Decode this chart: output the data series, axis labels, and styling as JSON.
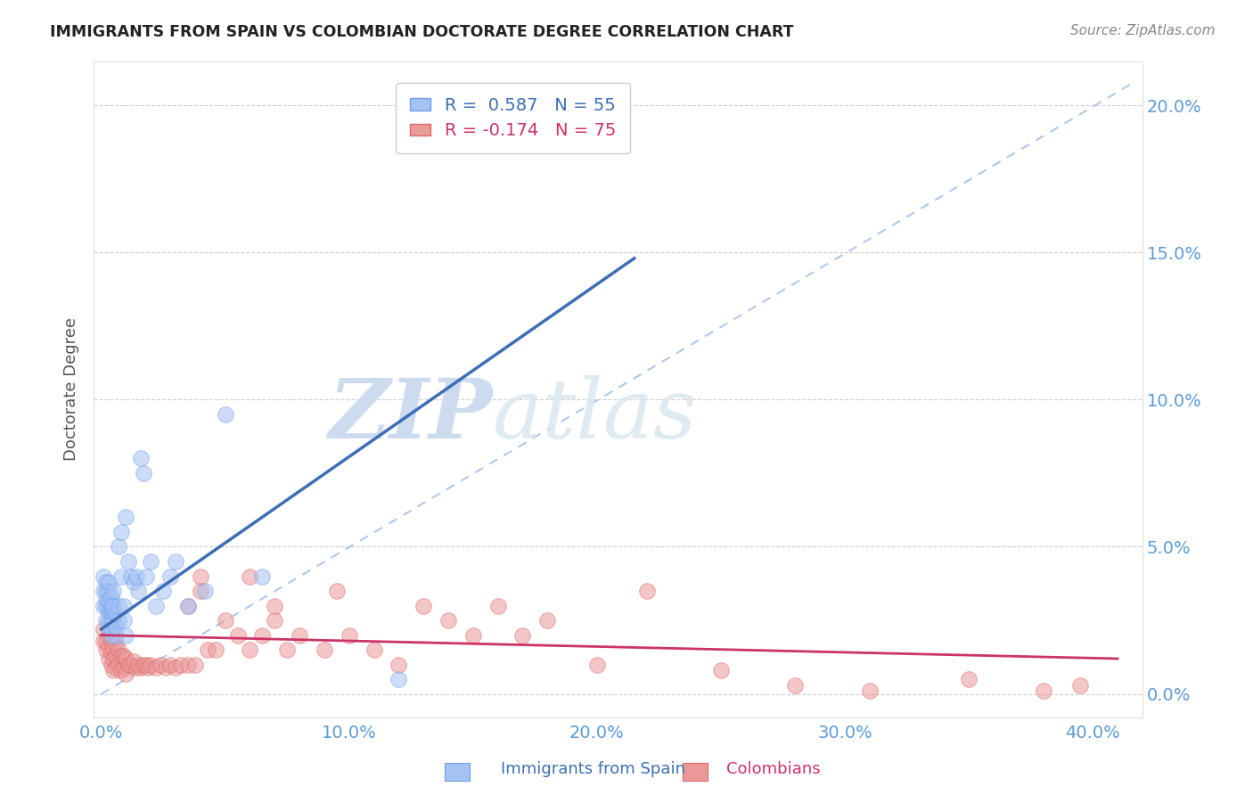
{
  "title": "IMMIGRANTS FROM SPAIN VS COLOMBIAN DOCTORATE DEGREE CORRELATION CHART",
  "source": "Source: ZipAtlas.com",
  "ylabel": "Doctorate Degree",
  "blue_r": 0.587,
  "blue_n": 55,
  "pink_r": -0.174,
  "pink_n": 75,
  "blue_color": "#a4c2f4",
  "pink_color": "#ea9999",
  "blue_edge_color": "#6d9eeb",
  "pink_edge_color": "#e06666",
  "blue_line_color": "#3d6eb5",
  "pink_line_color": "#cc3366",
  "dashed_line_color": "#b0c8e8",
  "watermark_color": "#dce8f8",
  "tick_color": "#5b9bd5",
  "ytick_values": [
    0.0,
    0.05,
    0.1,
    0.15,
    0.2
  ],
  "xtick_values": [
    0.0,
    0.1,
    0.2,
    0.3,
    0.4
  ],
  "xlim": [
    -0.003,
    0.42
  ],
  "ylim": [
    -0.008,
    0.215
  ],
  "blue_line_x": [
    0.0,
    0.215
  ],
  "blue_line_y": [
    0.022,
    0.148
  ],
  "pink_line_x": [
    0.0,
    0.41
  ],
  "pink_line_y": [
    0.02,
    0.012
  ],
  "dash_line_x": [
    0.0,
    0.415
  ],
  "dash_line_y": [
    0.0,
    0.207
  ],
  "blue_scatter_x": [
    0.001,
    0.001,
    0.001,
    0.002,
    0.002,
    0.002,
    0.002,
    0.002,
    0.003,
    0.003,
    0.003,
    0.003,
    0.003,
    0.003,
    0.003,
    0.004,
    0.004,
    0.004,
    0.004,
    0.004,
    0.004,
    0.005,
    0.005,
    0.005,
    0.005,
    0.006,
    0.006,
    0.006,
    0.007,
    0.007,
    0.007,
    0.008,
    0.008,
    0.009,
    0.009,
    0.01,
    0.01,
    0.011,
    0.012,
    0.013,
    0.014,
    0.015,
    0.016,
    0.017,
    0.018,
    0.02,
    0.022,
    0.025,
    0.028,
    0.03,
    0.035,
    0.042,
    0.05,
    0.065,
    0.12
  ],
  "blue_scatter_y": [
    0.03,
    0.035,
    0.04,
    0.025,
    0.03,
    0.032,
    0.035,
    0.038,
    0.022,
    0.025,
    0.028,
    0.03,
    0.032,
    0.035,
    0.038,
    0.02,
    0.022,
    0.025,
    0.028,
    0.03,
    0.033,
    0.025,
    0.028,
    0.03,
    0.035,
    0.02,
    0.023,
    0.027,
    0.025,
    0.03,
    0.05,
    0.04,
    0.055,
    0.025,
    0.03,
    0.02,
    0.06,
    0.045,
    0.04,
    0.038,
    0.04,
    0.035,
    0.08,
    0.075,
    0.04,
    0.045,
    0.03,
    0.035,
    0.04,
    0.045,
    0.03,
    0.035,
    0.095,
    0.04,
    0.005
  ],
  "pink_scatter_x": [
    0.001,
    0.001,
    0.002,
    0.002,
    0.003,
    0.003,
    0.003,
    0.004,
    0.004,
    0.004,
    0.005,
    0.005,
    0.005,
    0.006,
    0.006,
    0.006,
    0.007,
    0.007,
    0.008,
    0.008,
    0.009,
    0.009,
    0.01,
    0.01,
    0.011,
    0.012,
    0.013,
    0.014,
    0.015,
    0.016,
    0.017,
    0.018,
    0.019,
    0.02,
    0.022,
    0.024,
    0.026,
    0.028,
    0.03,
    0.032,
    0.035,
    0.038,
    0.04,
    0.043,
    0.046,
    0.05,
    0.055,
    0.06,
    0.065,
    0.07,
    0.075,
    0.08,
    0.09,
    0.1,
    0.11,
    0.12,
    0.13,
    0.14,
    0.15,
    0.16,
    0.17,
    0.18,
    0.2,
    0.22,
    0.25,
    0.28,
    0.31,
    0.35,
    0.38,
    0.395,
    0.035,
    0.04,
    0.06,
    0.07,
    0.095
  ],
  "pink_scatter_y": [
    0.018,
    0.022,
    0.015,
    0.018,
    0.012,
    0.016,
    0.02,
    0.01,
    0.014,
    0.018,
    0.008,
    0.012,
    0.016,
    0.009,
    0.013,
    0.017,
    0.01,
    0.015,
    0.008,
    0.013,
    0.009,
    0.013,
    0.007,
    0.012,
    0.01,
    0.01,
    0.011,
    0.009,
    0.01,
    0.009,
    0.01,
    0.01,
    0.009,
    0.01,
    0.009,
    0.01,
    0.009,
    0.01,
    0.009,
    0.01,
    0.01,
    0.01,
    0.04,
    0.015,
    0.015,
    0.025,
    0.02,
    0.015,
    0.02,
    0.025,
    0.015,
    0.02,
    0.015,
    0.02,
    0.015,
    0.01,
    0.03,
    0.025,
    0.02,
    0.03,
    0.02,
    0.025,
    0.01,
    0.035,
    0.008,
    0.003,
    0.001,
    0.005,
    0.001,
    0.003,
    0.03,
    0.035,
    0.04,
    0.03,
    0.035
  ]
}
